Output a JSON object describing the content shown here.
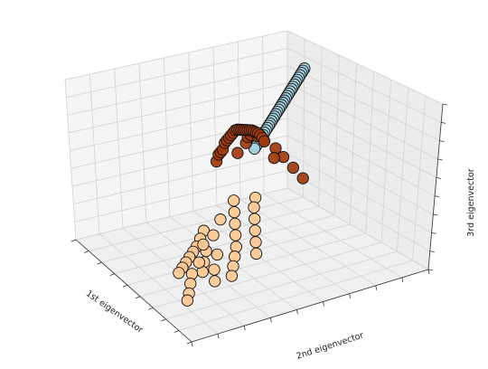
{
  "chart_data": {
    "type": "scatter",
    "projection": "3d",
    "title": "",
    "xlabel": "1st eigenvector",
    "ylabel": "2nd eigenvector",
    "zlabel": "3rd eigenvector",
    "grid": true,
    "legend": "none",
    "colors": {
      "pane_left": "#f5f5f5",
      "pane_right": "#ececec",
      "pane_floor": "#f0f0f0",
      "grid": "#d2d2d2",
      "edge": "#111111",
      "cluster_blue": "#a6d1e2",
      "cluster_dark_orange": "#a23a0f",
      "cluster_light_orange": "#fcc892"
    },
    "series": [
      {
        "color_key": "cluster_blue",
        "points": [
          [
            -0.8,
            1.56,
            0.45
          ],
          [
            -0.78,
            1.54,
            0.44
          ],
          [
            -0.76,
            1.52,
            0.43
          ],
          [
            -0.74,
            1.5,
            0.42
          ],
          [
            -0.72,
            1.48,
            0.41
          ],
          [
            -0.7,
            1.46,
            0.4
          ],
          [
            -0.68,
            1.44,
            0.39
          ],
          [
            -0.66,
            1.42,
            0.38
          ],
          [
            -0.64,
            1.4,
            0.37
          ],
          [
            -0.62,
            1.38,
            0.36
          ],
          [
            -0.6,
            1.36,
            0.35
          ],
          [
            -0.58,
            1.34,
            0.34
          ],
          [
            -0.56,
            1.32,
            0.33
          ],
          [
            -0.54,
            1.3,
            0.32
          ],
          [
            -0.52,
            1.28,
            0.31
          ],
          [
            -0.5,
            1.26,
            0.3
          ],
          [
            -0.48,
            1.24,
            0.29
          ],
          [
            -0.46,
            1.22,
            0.28
          ],
          [
            -0.44,
            1.2,
            0.27
          ],
          [
            -0.42,
            1.18,
            0.26
          ],
          [
            -0.4,
            1.16,
            0.25
          ],
          [
            -0.38,
            1.14,
            0.24
          ],
          [
            -0.36,
            1.12,
            0.23
          ],
          [
            -0.34,
            1.1,
            0.22
          ],
          [
            -0.32,
            1.08,
            0.21
          ],
          [
            -0.3,
            1.06,
            0.2
          ],
          [
            -0.28,
            1.04,
            0.19
          ],
          [
            -0.26,
            1.02,
            0.18
          ],
          [
            -0.24,
            1.0,
            0.17
          ],
          [
            -0.22,
            0.98,
            0.16
          ],
          [
            -0.2,
            0.96,
            0.15
          ],
          [
            -0.18,
            0.94,
            0.14
          ],
          [
            -0.16,
            0.92,
            0.13
          ],
          [
            -0.14,
            0.9,
            0.12
          ],
          [
            -0.12,
            0.88,
            0.11
          ],
          [
            -0.1,
            0.86,
            0.1
          ]
        ]
      },
      {
        "color_key": "cluster_dark_orange",
        "points": [
          [
            0.1,
            0.45,
            0.2
          ],
          [
            0.15,
            0.45,
            0.3
          ],
          [
            0.2,
            0.45,
            0.35
          ],
          [
            0.25,
            0.45,
            0.4
          ],
          [
            0.3,
            0.45,
            0.5
          ],
          [
            0.35,
            0.45,
            0.55
          ],
          [
            0.4,
            0.45,
            0.6
          ],
          [
            0.45,
            0.45,
            0.65
          ],
          [
            0.5,
            0.45,
            0.7
          ],
          [
            0.55,
            0.45,
            0.75
          ],
          [
            0.6,
            0.45,
            0.78
          ],
          [
            0.65,
            0.45,
            0.8
          ],
          [
            0.7,
            0.45,
            0.82
          ],
          [
            0.75,
            0.45,
            0.84
          ],
          [
            0.8,
            0.45,
            0.86
          ],
          [
            0.85,
            0.45,
            0.88
          ],
          [
            0.9,
            0.45,
            0.9
          ],
          [
            0.95,
            0.45,
            0.92
          ],
          [
            1.0,
            0.45,
            0.93
          ],
          [
            1.05,
            0.45,
            0.94
          ],
          [
            1.1,
            0.45,
            0.95
          ],
          [
            1.15,
            0.45,
            0.95
          ],
          [
            1.2,
            0.45,
            0.94
          ],
          [
            1.25,
            0.45,
            0.92
          ],
          [
            0.2,
            0.6,
            0.28
          ],
          [
            0.35,
            0.62,
            0.45
          ],
          [
            0.5,
            0.58,
            0.6
          ],
          [
            0.65,
            0.55,
            0.7
          ],
          [
            0.8,
            0.55,
            0.78
          ],
          [
            0.95,
            0.5,
            0.83
          ],
          [
            1.1,
            0.5,
            0.85
          ],
          [
            1.25,
            0.55,
            0.8
          ],
          [
            1.3,
            0.6,
            0.7
          ],
          [
            1.4,
            0.65,
            0.6
          ],
          [
            1.5,
            0.7,
            0.5
          ],
          [
            1.35,
            0.5,
            0.75
          ]
        ]
      },
      {
        "color_key": "cluster_light_orange",
        "points": [
          [
            0.2,
            0.3,
            -0.5
          ],
          [
            0.25,
            0.25,
            -0.55
          ],
          [
            0.3,
            0.2,
            -0.6
          ],
          [
            0.35,
            0.15,
            -0.62
          ],
          [
            0.4,
            0.1,
            -0.64
          ],
          [
            0.45,
            0.05,
            -0.66
          ],
          [
            0.5,
            0.0,
            -0.68
          ],
          [
            0.55,
            -0.05,
            -0.7
          ],
          [
            0.6,
            0.3,
            -0.2
          ],
          [
            0.7,
            0.2,
            -0.3
          ],
          [
            0.8,
            0.1,
            -0.4
          ],
          [
            0.9,
            0.0,
            -0.45
          ],
          [
            1.0,
            -0.1,
            -0.5
          ],
          [
            1.1,
            -0.15,
            -0.55
          ],
          [
            1.2,
            -0.2,
            -0.6
          ],
          [
            1.3,
            -0.25,
            -0.62
          ],
          [
            0.65,
            0.4,
            0.0
          ],
          [
            0.8,
            0.35,
            -0.05
          ],
          [
            0.95,
            0.3,
            -0.1
          ],
          [
            1.1,
            0.25,
            -0.15
          ],
          [
            1.25,
            0.2,
            -0.2
          ],
          [
            1.35,
            0.15,
            -0.25
          ],
          [
            1.45,
            0.1,
            -0.3
          ],
          [
            1.55,
            0.05,
            -0.35
          ],
          [
            0.9,
            0.5,
            0.1
          ],
          [
            1.0,
            0.45,
            0.05
          ],
          [
            1.15,
            0.4,
            0.0
          ],
          [
            1.3,
            0.35,
            -0.05
          ],
          [
            1.45,
            0.3,
            -0.1
          ],
          [
            1.6,
            0.25,
            -0.15
          ],
          [
            1.0,
            0.0,
            -0.2
          ],
          [
            1.2,
            0.05,
            -0.25
          ],
          [
            1.4,
            -0.05,
            -0.3
          ],
          [
            1.55,
            -0.1,
            -0.35
          ],
          [
            0.75,
            0.1,
            -0.55
          ],
          [
            0.85,
            0.05,
            -0.6
          ]
        ]
      }
    ]
  }
}
